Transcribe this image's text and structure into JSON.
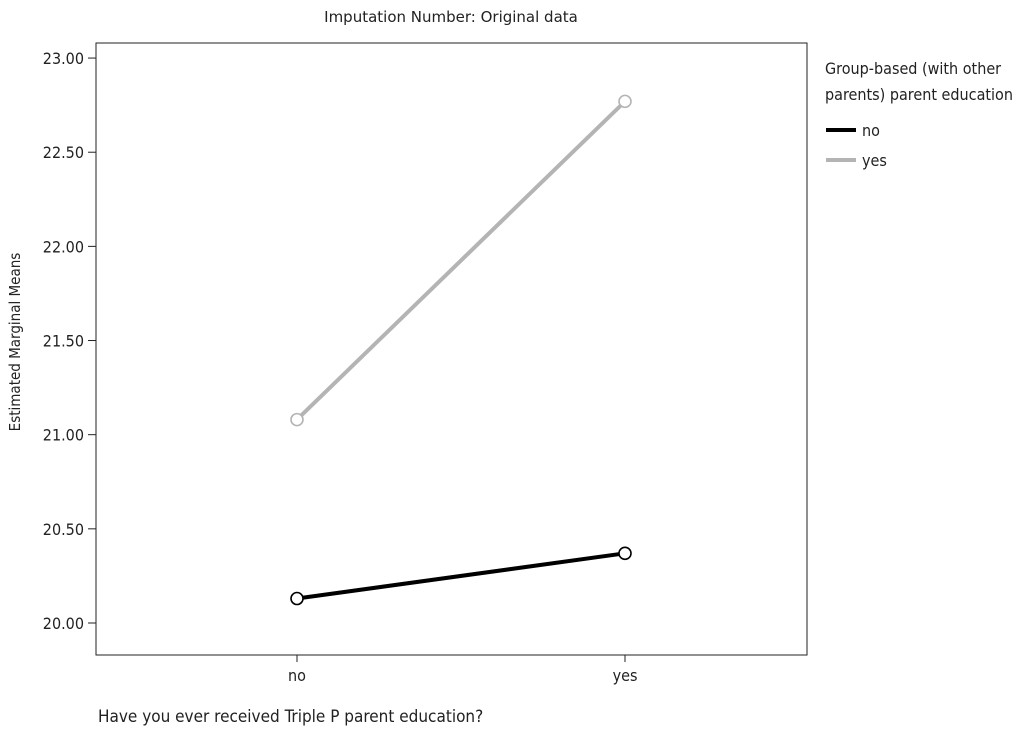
{
  "chart_data": {
    "type": "line",
    "title": "Imputation Number: Original data",
    "xlabel": "Have you ever received Triple P parent education?",
    "ylabel": "Estimated Marginal Means",
    "categories": [
      "no",
      "yes"
    ],
    "ylim": [
      19.83,
      23.08
    ],
    "yticks": [
      20.0,
      20.5,
      21.0,
      21.5,
      22.0,
      22.5,
      23.0
    ],
    "ytick_labels": [
      "20.00",
      "20.50",
      "21.00",
      "21.50",
      "22.00",
      "22.50",
      "23.00"
    ],
    "grid": false,
    "legend": {
      "title": "Group-based (with other parents) parent education",
      "title_lines": [
        "Group-based (with other",
        "parents) parent education"
      ],
      "placement": "right"
    },
    "series": [
      {
        "name": "no",
        "color": "#000000",
        "values": [
          20.13,
          20.37
        ]
      },
      {
        "name": "yes",
        "color": "#b4b4b4",
        "values": [
          21.08,
          22.77
        ]
      }
    ]
  }
}
